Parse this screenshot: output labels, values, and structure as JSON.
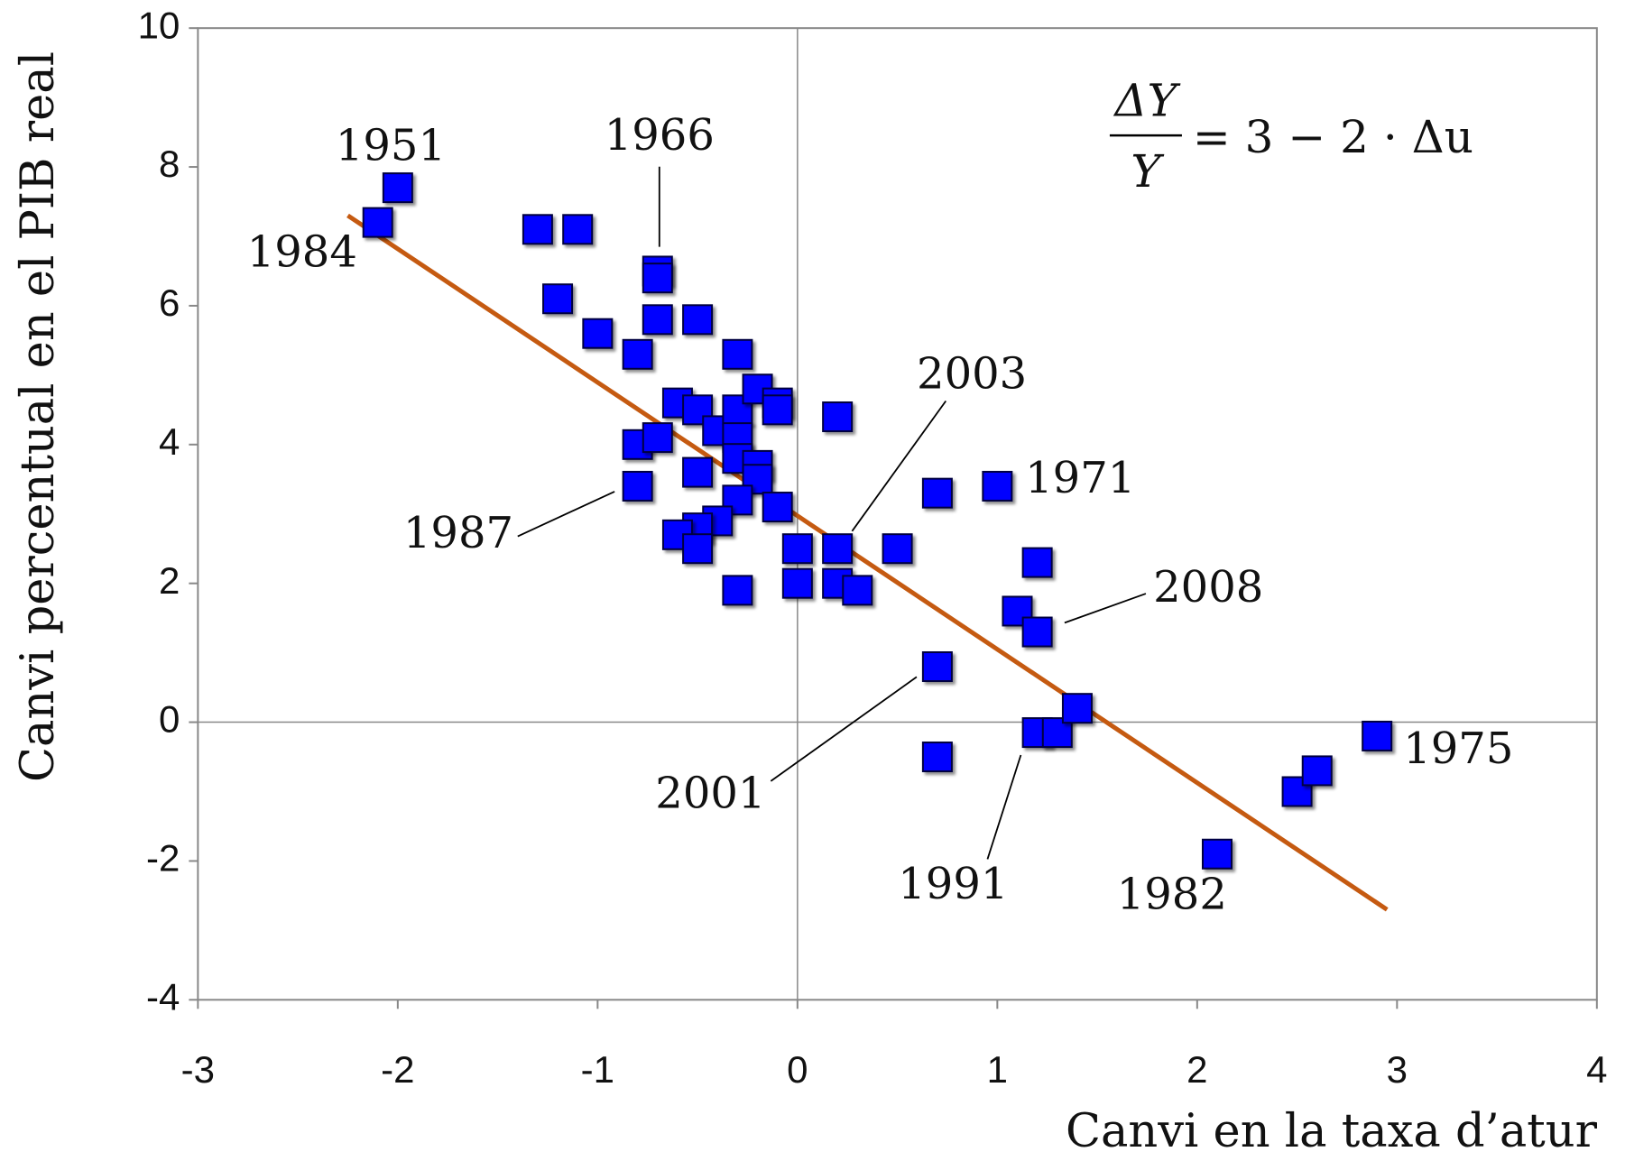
{
  "chart_data": {
    "type": "scatter",
    "x_label": "Canvi en la taxa d’atur",
    "y_label": "Canvi percentual en el PIB real",
    "x": [
      -2.1,
      -2.0,
      -1.3,
      -1.1,
      -1.2,
      -1.0,
      -0.8,
      -0.7,
      -0.7,
      -0.7,
      -0.5,
      -0.3,
      -0.6,
      -0.5,
      -0.4,
      -0.3,
      -0.3,
      -0.2,
      -0.1,
      -0.1,
      -0.8,
      -0.7,
      -0.3,
      -0.2,
      -0.2,
      -0.5,
      -0.8,
      -0.3,
      -0.1,
      -0.4,
      -0.5,
      -0.6,
      -0.5,
      -0.3,
      0.0,
      0.0,
      0.2,
      0.2,
      0.2,
      0.3,
      0.5,
      0.7,
      1.0,
      1.2,
      1.1,
      1.2,
      0.7,
      0.7,
      1.2,
      1.3,
      1.4,
      2.1,
      2.5,
      2.6,
      2.9
    ],
    "y": [
      7.2,
      7.7,
      7.1,
      7.1,
      6.1,
      5.6,
      5.3,
      6.5,
      6.4,
      5.8,
      5.8,
      5.3,
      4.6,
      4.5,
      4.2,
      4.5,
      4.1,
      4.8,
      4.6,
      4.5,
      4.0,
      4.1,
      3.8,
      3.7,
      3.5,
      3.6,
      3.4,
      3.2,
      3.1,
      2.9,
      2.8,
      2.7,
      2.5,
      1.9,
      2.5,
      2.0,
      2.5,
      4.4,
      2.0,
      1.9,
      2.5,
      3.3,
      3.4,
      2.3,
      1.6,
      1.3,
      0.8,
      -0.5,
      -0.15,
      -0.15,
      0.2,
      -1.9,
      -1.0,
      -0.7,
      -0.2
    ],
    "color": "#0000ff",
    "fit_line": {
      "x": [
        -2.25,
        2.95
      ],
      "y": [
        7.3,
        -2.7
      ],
      "color": "#c55a11"
    },
    "xlim": [
      -3,
      4
    ],
    "ylim": [
      -4,
      10
    ],
    "xticks": [
      -3,
      -2,
      -1,
      0,
      1,
      2,
      3,
      4
    ],
    "yticks": [
      -4,
      -2,
      0,
      2,
      4,
      6,
      8,
      10
    ],
    "zero_lines": true,
    "annotations": [
      "1951",
      "1984",
      "1966",
      "1987",
      "2003",
      "2001",
      "1971",
      "2008",
      "1991",
      "1982",
      "1975"
    ],
    "equation": {
      "numerator": "ΔY",
      "denominator": "Y",
      "rhs": "= 3 − 2 · Δu"
    }
  }
}
